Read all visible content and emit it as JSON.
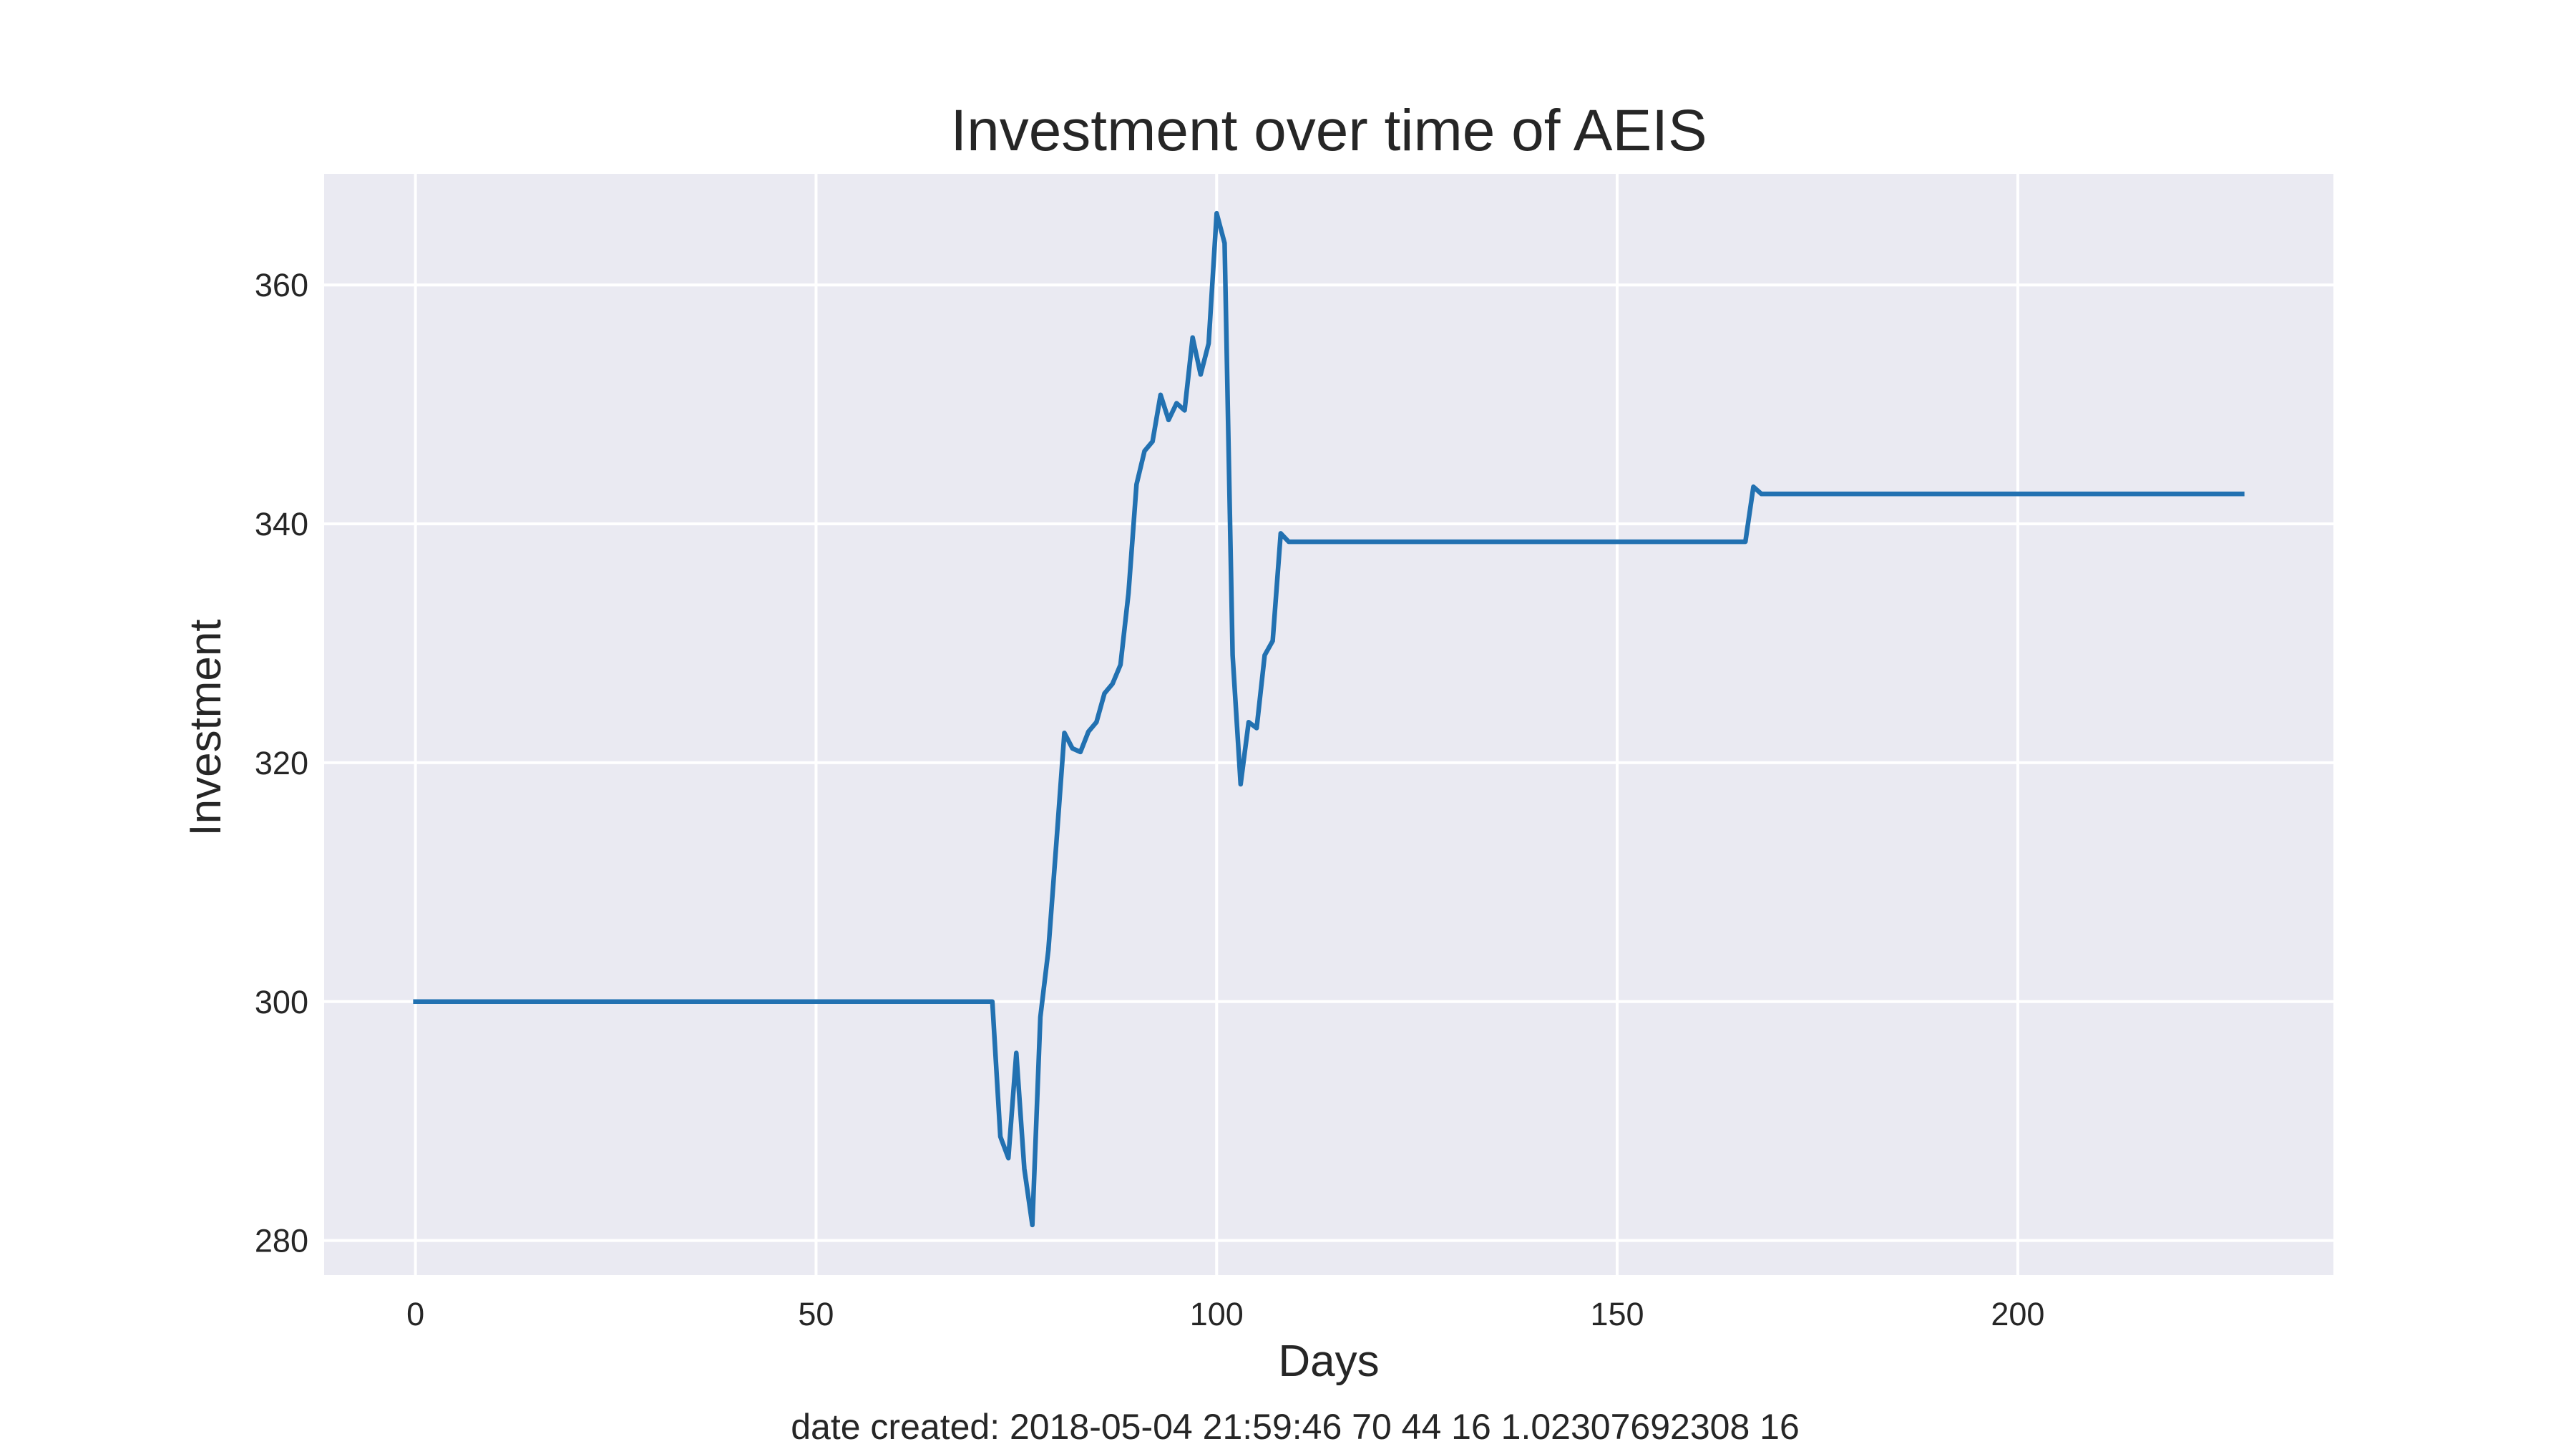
{
  "chart_data": {
    "type": "line",
    "title": "Investment over time of AEIS",
    "xlabel": "Days",
    "ylabel": "Investment",
    "xlim": [
      -11.4,
      239.4
    ],
    "ylim": [
      277.1,
      369.3
    ],
    "xticks": [
      0,
      50,
      100,
      150,
      200
    ],
    "yticks": [
      280,
      300,
      320,
      340,
      360
    ],
    "grid": true,
    "legend": "none",
    "colors": {
      "background": "#eaeaf2",
      "grid": "#ffffff",
      "line": "#2271b1"
    },
    "series": [
      {
        "x": [
          0,
          72,
          73,
          74,
          75,
          76,
          77,
          78,
          79,
          80,
          81,
          82,
          83,
          84,
          85,
          86,
          87,
          88,
          89,
          90,
          91,
          92,
          93,
          94,
          95,
          96,
          97,
          98,
          99,
          100,
          101,
          102,
          103,
          104,
          105,
          106,
          107,
          108,
          109,
          166,
          167,
          168,
          228
        ],
        "y": [
          300,
          300,
          288.7,
          286.9,
          295.7,
          286,
          281.3,
          298.7,
          304.3,
          313.3,
          322.5,
          321.2,
          320.9,
          322.6,
          323.4,
          325.8,
          326.6,
          328.2,
          334.2,
          343.3,
          346.1,
          346.9,
          350.8,
          348.7,
          350.1,
          349.5,
          355.6,
          352.5,
          355.1,
          366,
          363.5,
          329,
          318.2,
          323.4,
          322.9,
          329,
          330.2,
          339.2,
          338.5,
          338.5,
          343.1,
          342.5,
          342.5
        ]
      }
    ]
  },
  "footer": {
    "text": "date created: 2018-05-04 21:59:46 70 44 16 1.02307692308 16"
  }
}
